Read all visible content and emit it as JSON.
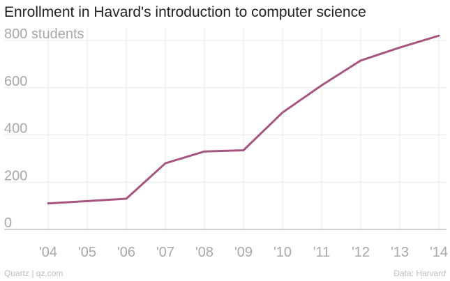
{
  "chart_data": {
    "type": "line",
    "title": "Enrollment in Havard's introduction to computer science",
    "ylabel": "",
    "xlabel": "",
    "ylim": [
      0,
      800
    ],
    "yticks": [
      0,
      200,
      400,
      600,
      800
    ],
    "ytick_labels": [
      "0",
      "200",
      "400",
      "600",
      "800 students"
    ],
    "x": [
      2004,
      2005,
      2006,
      2007,
      2008,
      2009,
      2010,
      2011,
      2012,
      2013,
      2014
    ],
    "xtick_labels": [
      "'04",
      "'05",
      "'06",
      "'07",
      "'08",
      "'09",
      "'10",
      "'11",
      "'12",
      "'13",
      "'14"
    ],
    "series": [
      {
        "values": [
          110,
          120,
          130,
          280,
          330,
          335,
          495,
          610,
          715,
          770,
          820
        ],
        "color": "#a5557f"
      }
    ],
    "grid": true,
    "legend": "none"
  },
  "footer": {
    "source_left": "Quartz | qz.com",
    "source_right": "Data: Harvard"
  },
  "colors": {
    "line": "#a5557f",
    "grid": "#e8e8e8",
    "baseline": "#b5b5b5",
    "tick_text": "#a8a8a8"
  }
}
